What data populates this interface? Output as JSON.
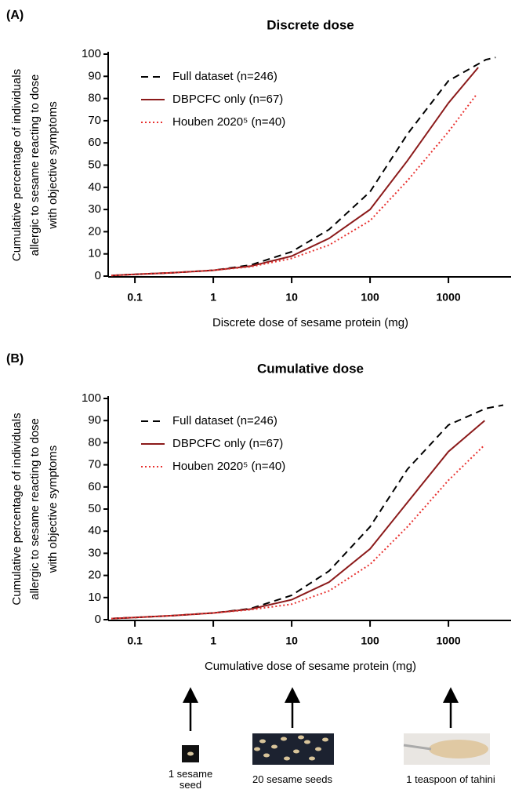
{
  "chart_data": [
    {
      "type": "line",
      "panel_label": "(A)",
      "title": "Discrete dose",
      "xlabel": "Discrete dose of sesame protein (mg)",
      "ylabel": [
        "Cumulative percentage of individuals",
        "allergic to sesame reacting to dose",
        "with objective symptoms"
      ],
      "xscale": "log",
      "xlim": [
        0.05,
        5000
      ],
      "xticks": [
        0.1,
        1,
        10,
        100,
        1000
      ],
      "ylim": [
        0,
        100
      ],
      "yticks": [
        0,
        10,
        20,
        30,
        40,
        50,
        60,
        70,
        80,
        90,
        100
      ],
      "legend": "upper left",
      "series": [
        {
          "name": "Full dataset (n=246)",
          "color": "#000000",
          "dash": "dashed",
          "x": [
            0.05,
            0.1,
            0.3,
            1,
            3,
            10,
            30,
            100,
            300,
            1000,
            3000,
            4000
          ],
          "values": [
            0.3,
            0.8,
            1.5,
            2.6,
            5,
            11,
            21,
            38,
            64,
            88,
            97.5,
            98.5
          ]
        },
        {
          "name": "DBPCFC only (n=67)",
          "color": "#8b1a1a",
          "dash": "solid",
          "x": [
            0.05,
            0.1,
            0.3,
            1,
            3,
            10,
            30,
            100,
            300,
            1000,
            2400
          ],
          "values": [
            0.3,
            0.8,
            1.5,
            2.6,
            4.5,
            9,
            17,
            30,
            52,
            78,
            94
          ]
        },
        {
          "name": "Houben 2020⁵ (n=40)",
          "color": "#e8312f",
          "dash": "dotted",
          "x": [
            0.05,
            0.1,
            0.3,
            1,
            3,
            10,
            30,
            100,
            300,
            1000,
            2300
          ],
          "values": [
            0.3,
            0.8,
            1.5,
            2.6,
            4.2,
            8,
            14,
            25,
            43,
            65,
            82
          ]
        }
      ]
    },
    {
      "type": "line",
      "panel_label": "(B)",
      "title": "Cumulative dose",
      "xlabel": "Cumulative dose of sesame protein (mg)",
      "ylabel": [
        "Cumulative percentage of individuals",
        "allergic to sesame reacting to dose",
        "with objective symptoms"
      ],
      "xscale": "log",
      "xlim": [
        0.05,
        5000
      ],
      "xticks": [
        0.1,
        1,
        10,
        100,
        1000
      ],
      "ylim": [
        0,
        100
      ],
      "yticks": [
        0,
        10,
        20,
        30,
        40,
        50,
        60,
        70,
        80,
        90,
        100
      ],
      "legend": "upper left",
      "series": [
        {
          "name": "Full dataset (n=246)",
          "color": "#000000",
          "dash": "dashed",
          "x": [
            0.05,
            0.1,
            0.3,
            1,
            3,
            10,
            30,
            100,
            300,
            1000,
            3000,
            5000
          ],
          "values": [
            0.5,
            1,
            1.8,
            3,
            5,
            11,
            22,
            42,
            68,
            88,
            95.5,
            97
          ]
        },
        {
          "name": "DBPCFC only (n=67)",
          "color": "#8b1a1a",
          "dash": "solid",
          "x": [
            0.05,
            0.1,
            0.3,
            1,
            3,
            10,
            30,
            100,
            300,
            1000,
            2900
          ],
          "values": [
            0.5,
            1,
            1.8,
            3,
            4.8,
            9,
            17,
            32,
            53,
            76,
            90
          ]
        },
        {
          "name": "Houben 2020⁵ (n=40)",
          "color": "#e8312f",
          "dash": "dotted",
          "x": [
            0.05,
            0.1,
            0.3,
            1,
            3,
            10,
            30,
            100,
            300,
            1000,
            2900
          ],
          "values": [
            0.5,
            1,
            1.8,
            3,
            4.5,
            7,
            13,
            25,
            42,
            63,
            79
          ]
        }
      ]
    }
  ],
  "references": [
    {
      "label": "1 sesame seed"
    },
    {
      "label": "20 sesame seeds"
    },
    {
      "label": "1 teaspoon of tahini"
    }
  ]
}
